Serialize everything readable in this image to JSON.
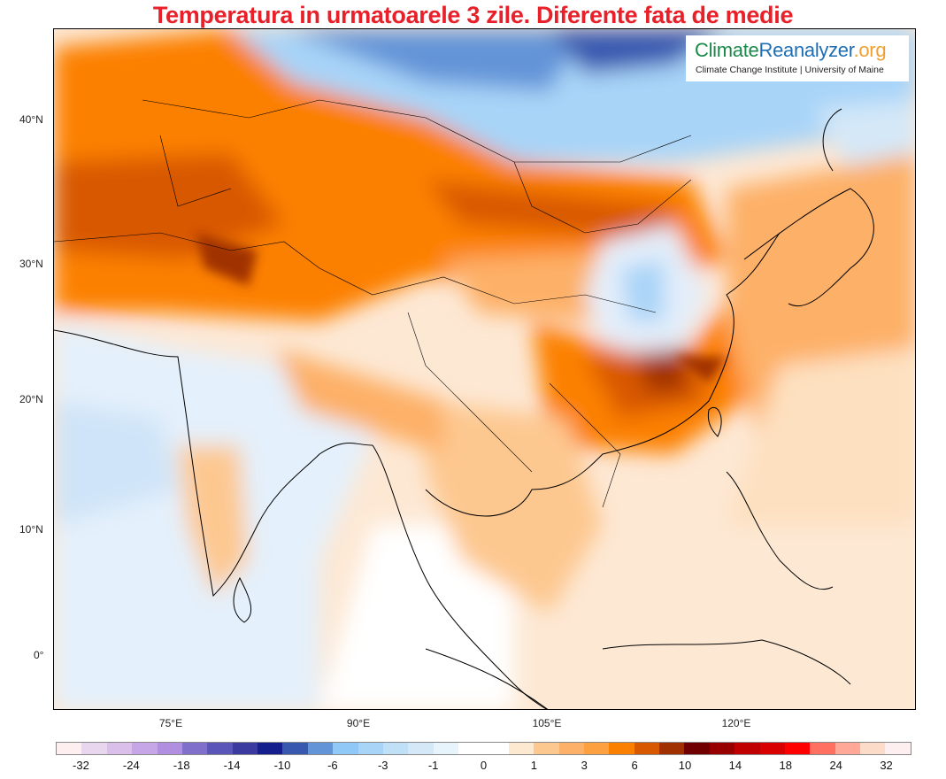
{
  "title": "Temperatura in urmatoarele 3 zile. Diferente fata de medie",
  "logo": {
    "part1": "Climate",
    "part2": "Reanalyzer",
    "part3": ".org",
    "subtitle": "Climate Change Institute | University of Maine",
    "colors": [
      "#1a8a4a",
      "#1e6eb4",
      "#f0a030"
    ]
  },
  "axes": {
    "lat_labels": [
      "40°N",
      "30°N",
      "20°N",
      "10°N",
      "0°"
    ],
    "lon_labels": [
      "75°E",
      "90°E",
      "105°E",
      "120°E"
    ]
  },
  "colorbar": {
    "labels": [
      "-32",
      "-24",
      "-18",
      "-14",
      "-10",
      "-6",
      "-3",
      "-1",
      "0",
      "1",
      "3",
      "6",
      "10",
      "14",
      "18",
      "24",
      "32"
    ],
    "colors": [
      "#fdeef0",
      "#e8d6ef",
      "#d9bfea",
      "#c6a6e6",
      "#b08ee0",
      "#8070cc",
      "#5a55b8",
      "#3a3aa0",
      "#141e8c",
      "#3858b0",
      "#6494d8",
      "#90c8f8",
      "#a8d4f8",
      "#c0e0f8",
      "#d4e8f8",
      "#e8f4fc",
      "#ffffff",
      "#ffffff",
      "#fde8d0",
      "#fdc890",
      "#fdb068",
      "#fca040",
      "#fc8000",
      "#d85800",
      "#a03000",
      "#700000",
      "#980000",
      "#c00000",
      "#d80000",
      "#ff0000",
      "#ff7060",
      "#ffa898",
      "#fcdcc8",
      "#fdeef0"
    ]
  }
}
